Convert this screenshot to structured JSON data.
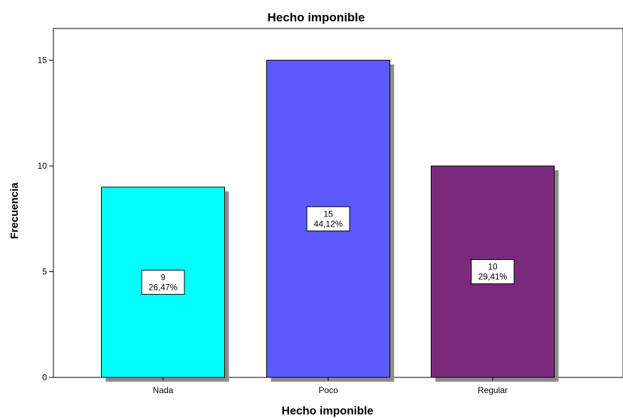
{
  "chart_data": {
    "type": "bar",
    "title": "Hecho imponible",
    "xlabel": "Hecho imponible",
    "ylabel": "Frecuencia",
    "categories": [
      "Nada",
      "Poco",
      "Regular"
    ],
    "values": [
      9,
      15,
      10
    ],
    "percent_labels": [
      "26,47%",
      "44,12%",
      "29,41%"
    ],
    "colors": [
      "#00ffff",
      "#5a5aff",
      "#7a2a7a"
    ],
    "ylim": [
      0,
      16.5
    ],
    "yticks": [
      0,
      5,
      10,
      15
    ],
    "grid": false,
    "legend": "none"
  }
}
